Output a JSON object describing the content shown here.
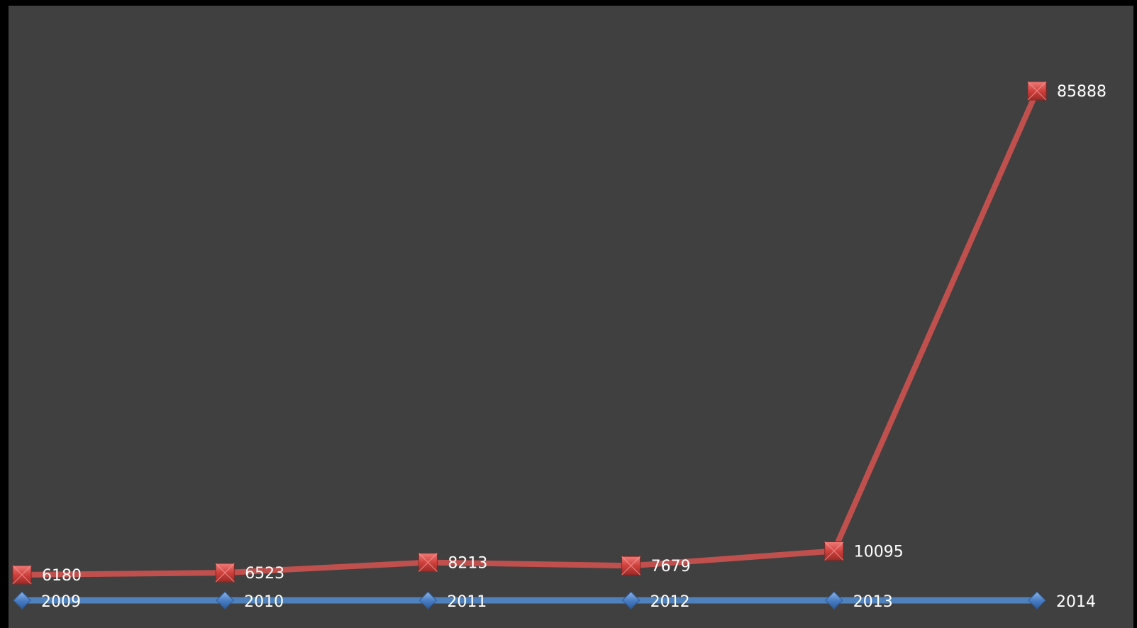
{
  "chart_data": {
    "type": "line",
    "categories": [
      "2009",
      "2010",
      "2011",
      "2012",
      "2013",
      "2014"
    ],
    "series": [
      {
        "marker": "square",
        "color": "#c0504d",
        "values": [
          6180,
          6523,
          8213,
          7679,
          10095,
          85888
        ],
        "data_labels": [
          "6180",
          "6523",
          "8213",
          "7679",
          "10095",
          "85888"
        ]
      },
      {
        "marker": "diamond",
        "color": "#4f81bd",
        "values": [
          2009,
          2010,
          2011,
          2012,
          2013,
          2014
        ],
        "data_labels": [
          "2009",
          "2010",
          "2011",
          "2012",
          "2013",
          "2014"
        ]
      }
    ],
    "ylim": [
      0,
      95000
    ],
    "grid": false,
    "legend": "none",
    "axes_visible": false,
    "background": "#404040"
  }
}
